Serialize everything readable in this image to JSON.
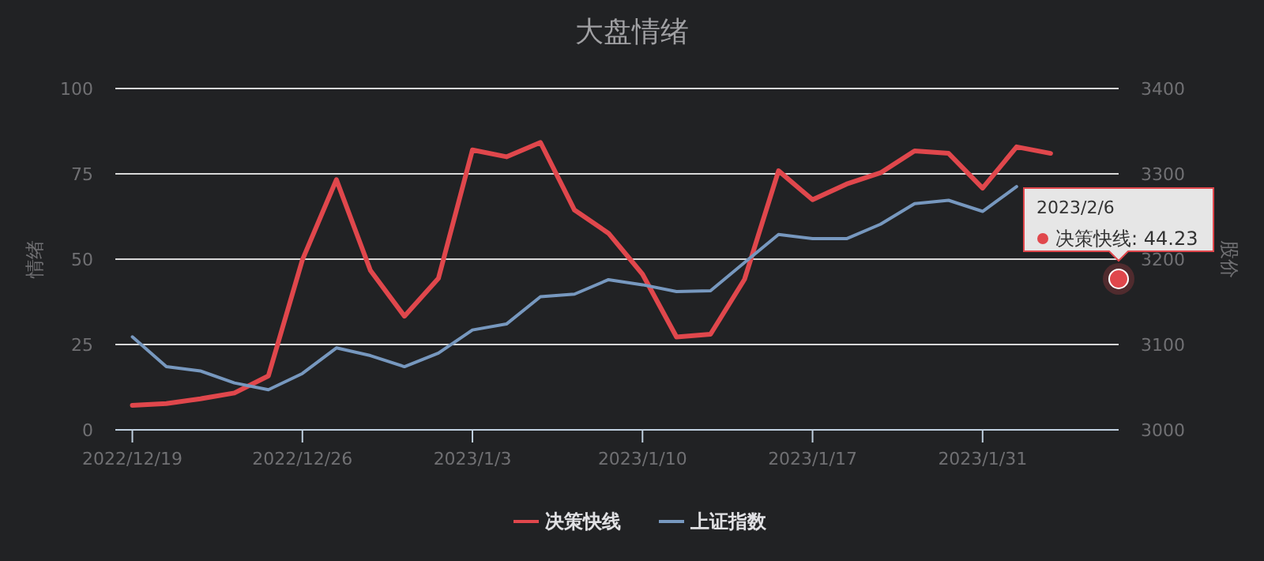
{
  "chart_data": {
    "type": "line",
    "title": "大盘情绪",
    "ylabel": "情绪",
    "y2label": "股价",
    "categories": [
      "2022/12/19",
      null,
      null,
      null,
      null,
      "2022/12/26",
      null,
      null,
      null,
      null,
      "2023/1/3",
      null,
      null,
      null,
      null,
      "2023/1/10",
      null,
      null,
      null,
      null,
      "2023/1/17",
      null,
      null,
      null,
      null,
      "2023/1/31",
      null,
      null,
      null,
      null
    ],
    "series": [
      {
        "name": "决策快线",
        "color": "#e0474c",
        "values": [
          7.2,
          7.7,
          9.1,
          10.8,
          15.8,
          49.8,
          73.3,
          46.7,
          33.3,
          44.4,
          82.0,
          80.0,
          84.2,
          64.4,
          57.6,
          45.6,
          27.2,
          28.0,
          44.1,
          75.9,
          67.4,
          72.0,
          75.3,
          81.7,
          81.0,
          70.8,
          82.9,
          81.0,
          null,
          44.23
        ]
      },
      {
        "name": "上证指数",
        "color": "#7798bf",
        "axis": "y2",
        "values": [
          3109,
          3074,
          3069,
          3055,
          3047,
          3066,
          3096,
          3087,
          3074,
          3090,
          3117,
          3124,
          3156,
          3159,
          3176,
          3170,
          3162,
          3163,
          3196,
          3229,
          3224,
          3224,
          3241,
          3265,
          3269,
          3256,
          3285,
          null,
          null,
          null
        ]
      }
    ],
    "ylim": [
      0,
      100
    ],
    "yticks": [
      0,
      25,
      50,
      75,
      100
    ],
    "y2lim": [
      3000,
      3400
    ],
    "y2ticks": [
      3000,
      3100,
      3200,
      3300,
      3400
    ],
    "grid": "y",
    "legend": "bottom",
    "marker": "none",
    "annotations": [
      "2023/2/6",
      "决策快线: 44.23"
    ]
  }
}
